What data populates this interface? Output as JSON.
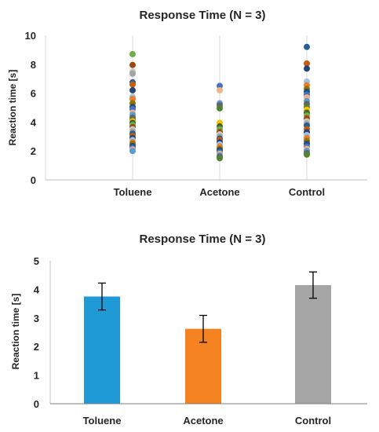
{
  "chart_data": [
    {
      "type": "scatter",
      "title": "Response Time (N = 3)",
      "ylabel": "Reaction time [s]",
      "xlabel": "",
      "ylim": [
        0,
        10
      ],
      "yticks": [
        0,
        2,
        4,
        6,
        8,
        10
      ],
      "grid": "vertical lines at categories",
      "legend": "none",
      "categories": [
        "Toluene",
        "Acetone",
        "Control"
      ],
      "points": [
        {
          "category": "Toluene",
          "values": [
            8.7,
            7.95,
            7.5,
            7.35,
            6.75,
            6.6,
            6.2,
            5.75,
            5.6,
            5.3,
            5.05,
            4.9,
            4.65,
            4.5,
            4.3,
            4.15,
            4.05,
            3.95,
            3.8,
            3.65,
            3.5,
            3.35,
            3.2,
            3.05,
            2.9,
            2.75,
            2.6,
            2.5,
            2.35,
            2.2,
            2.1,
            2.0
          ]
        },
        {
          "category": "Acetone",
          "values": [
            6.5,
            6.2,
            5.3,
            5.15,
            4.95,
            3.95,
            3.7,
            3.5,
            3.3,
            3.15,
            3.0,
            2.85,
            2.75,
            2.6,
            2.45,
            2.3,
            2.15,
            2.05,
            1.9,
            1.8,
            1.7,
            1.6,
            1.5
          ]
        },
        {
          "category": "Control",
          "values": [
            9.2,
            8.05,
            7.7,
            6.8,
            6.55,
            6.3,
            6.1,
            5.9,
            5.7,
            5.45,
            5.25,
            5.05,
            4.85,
            4.65,
            4.45,
            4.25,
            4.05,
            3.9,
            3.75,
            3.5,
            3.3,
            3.1,
            2.9,
            2.7,
            2.5,
            2.3,
            2.15,
            2.0,
            1.85,
            1.75
          ]
        }
      ],
      "point_colors": [
        "#70ad47",
        "#5b9bd5",
        "#ed7d31",
        "#a5a5a5",
        "#ffc000",
        "#4472c4",
        "#264478",
        "#9e480e",
        "#636363",
        "#997300",
        "#255e91",
        "#43682b",
        "#f4b183",
        "#9dc3e6",
        "#c9c9c9",
        "#548235",
        "#1f4e79",
        "#c55a11"
      ]
    },
    {
      "type": "bar",
      "title": "Response Time (N = 3)",
      "ylabel": "Reaction time [s]",
      "xlabel": "",
      "ylim": [
        0,
        5
      ],
      "yticks": [
        0,
        1,
        2,
        3,
        4,
        5
      ],
      "grid": "off",
      "legend": "none",
      "categories": [
        "Toluene",
        "Acetone",
        "Control"
      ],
      "values": [
        3.75,
        2.62,
        4.15
      ],
      "errors": [
        0.47,
        0.47,
        0.46
      ],
      "colors": [
        "#1f9ad6",
        "#f58220",
        "#a5a5a5"
      ]
    }
  ]
}
